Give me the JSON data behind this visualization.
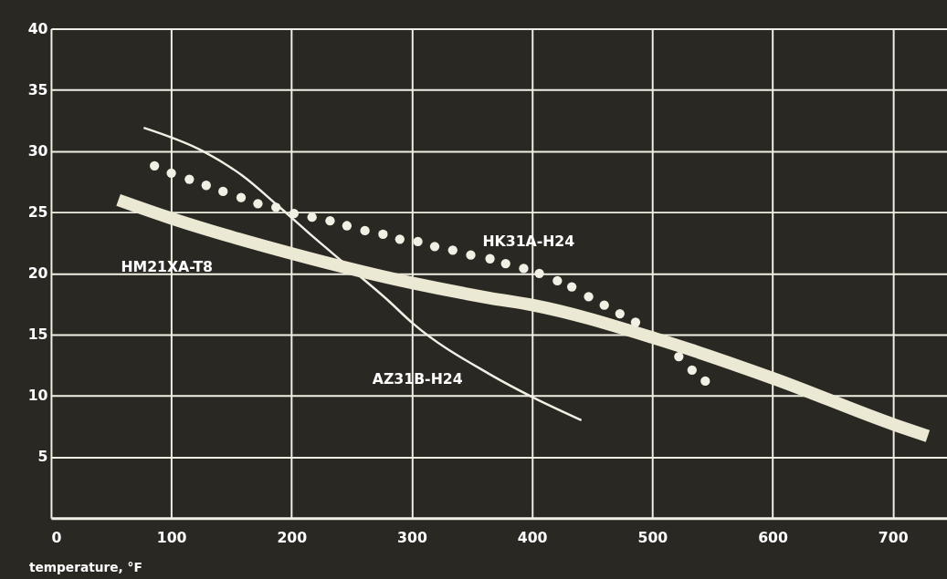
{
  "chart_data": {
    "type": "line",
    "xlabel": "temperature, °F",
    "xlim": [
      0,
      745
    ],
    "xticks": [
      0,
      100,
      200,
      300,
      400,
      500,
      600,
      700
    ],
    "ylim": [
      0,
      40
    ],
    "yticks": [
      5,
      10,
      15,
      20,
      25,
      30,
      35,
      40
    ],
    "grid": true,
    "line_style": "solid",
    "series": [
      {
        "name": "AZ31B-H24",
        "color": "#f2f0e4",
        "marker": "none",
        "x": [
          77,
          126,
          159,
          189,
          219,
          243,
          279,
          301,
          364,
          400,
          441
        ],
        "values": [
          31.9,
          30.0,
          28.0,
          25.5,
          22.9,
          20.9,
          17.9,
          15.9,
          11.8,
          9.9,
          8.0
        ]
      },
      {
        "name": "HM21XA-T8",
        "color": "#ebe8d3",
        "marker": "none",
        "x": [
          56,
          100,
          201,
          301,
          364,
          401,
          502,
          601,
          702,
          729
        ],
        "values": [
          26.0,
          24.5,
          21.6,
          19.2,
          18.0,
          17.4,
          14.7,
          11.4,
          7.6,
          6.7
        ]
      },
      {
        "name": "HK31A-H24",
        "type": "scatter",
        "color": "#f2f0e4",
        "marker": "circle",
        "x": [
          86,
          100,
          115,
          129,
          143,
          158,
          172,
          187,
          202,
          217,
          232,
          246,
          261,
          276,
          290,
          305,
          319,
          334,
          349,
          365,
          378,
          393,
          406,
          421,
          433,
          447,
          460,
          473,
          486,
          522,
          533,
          544
        ],
        "values": [
          28.8,
          28.2,
          27.7,
          27.2,
          26.7,
          26.2,
          25.7,
          25.4,
          24.9,
          24.6,
          24.3,
          23.9,
          23.5,
          23.2,
          22.8,
          22.6,
          22.2,
          21.9,
          21.5,
          21.2,
          20.8,
          20.4,
          20.0,
          19.4,
          18.9,
          18.1,
          17.4,
          16.7,
          16.0,
          13.2,
          12.1,
          11.2
        ]
      }
    ]
  }
}
